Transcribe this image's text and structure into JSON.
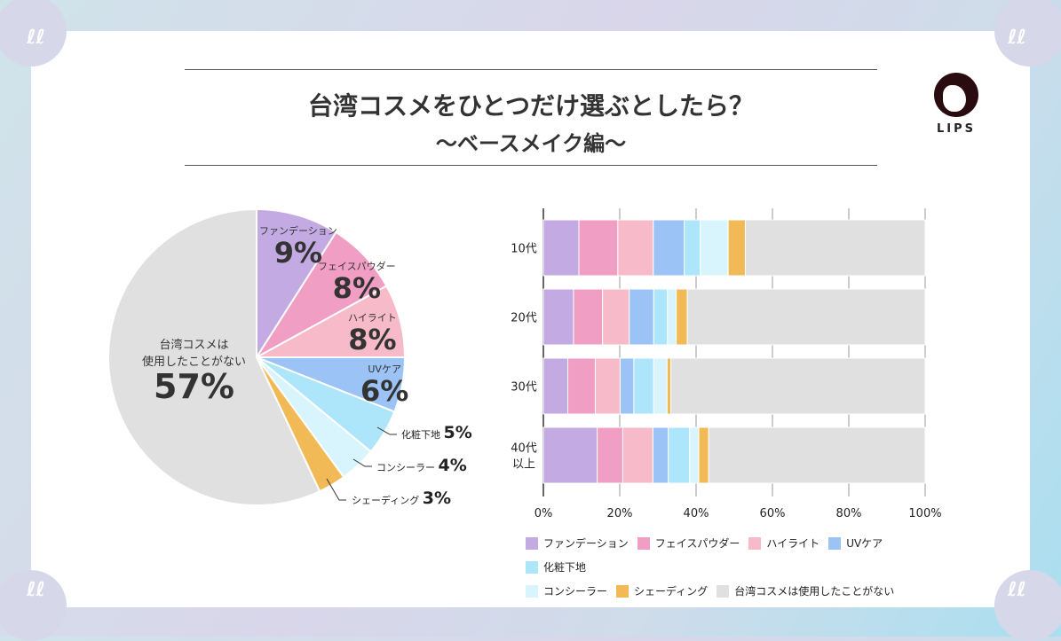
{
  "title": {
    "line1": "台湾コスメをひとつだけ選ぶとしたら？",
    "line2": "〜ベースメイク編〜"
  },
  "logo": {
    "name": "LIPS"
  },
  "colors": {
    "ファンデーション": "#c3aae3",
    "フェイスパウダー": "#f19ec4",
    "ハイライト": "#f7bac8",
    "UVケア": "#9bc3f5",
    "化粧下地": "#ade5fb",
    "コンシーラー": "#d8f5fd",
    "シェーディング": "#f2b957",
    "台湾コスメは使用したことがない": "#e0e0e0"
  },
  "chart_data": [
    {
      "type": "pie",
      "title": "",
      "slices": [
        {
          "label": "ファンデーション",
          "value": 9,
          "display": "9%"
        },
        {
          "label": "フェイスパウダー",
          "value": 8,
          "display": "8%"
        },
        {
          "label": "ハイライト",
          "value": 8,
          "display": "8%"
        },
        {
          "label": "UVケア",
          "value": 6,
          "display": "6%"
        },
        {
          "label": "化粧下地",
          "value": 5,
          "display": "5%"
        },
        {
          "label": "コンシーラー",
          "value": 4,
          "display": "4%"
        },
        {
          "label": "シェーディング",
          "value": 3,
          "display": "3%"
        },
        {
          "label": "台湾コスメは使用したことがない",
          "label_lines": [
            "台湾コスメは",
            "使用したことがない"
          ],
          "value": 57,
          "display": "57%"
        }
      ]
    },
    {
      "type": "bar",
      "stacked": true,
      "orientation": "horizontal",
      "categories": [
        "10代",
        "20代",
        "30代",
        "40代以上"
      ],
      "category_lines": [
        [
          "10代"
        ],
        [
          "20代"
        ],
        [
          "30代"
        ],
        [
          "40代",
          "以上"
        ]
      ],
      "xlim": [
        0,
        100
      ],
      "xticks": [
        "0%",
        "20%",
        "40%",
        "60%",
        "80%",
        "100%"
      ],
      "grid": true,
      "legend_position": "bottom",
      "series": [
        {
          "name": "ファンデーション",
          "values": [
            9.3,
            7.9,
            6.4,
            14.1
          ]
        },
        {
          "name": "フェイスパウダー",
          "values": [
            10.2,
            7.6,
            7.2,
            6.7
          ]
        },
        {
          "name": "ハイライト",
          "values": [
            9.3,
            7.0,
            6.5,
            7.9
          ]
        },
        {
          "name": "UVケア",
          "values": [
            8.1,
            6.4,
            3.6,
            4.0
          ]
        },
        {
          "name": "化粧下地",
          "values": [
            4.2,
            3.6,
            5.2,
            5.6
          ]
        },
        {
          "name": "コンシーラー",
          "values": [
            7.3,
            2.3,
            3.5,
            2.4
          ]
        },
        {
          "name": "シェーディング",
          "values": [
            4.5,
            2.9,
            1.0,
            2.6
          ]
        },
        {
          "name": "台湾コスメは使用したことがない",
          "values": [
            47.1,
            62.3,
            66.6,
            56.7
          ]
        }
      ]
    }
  ]
}
